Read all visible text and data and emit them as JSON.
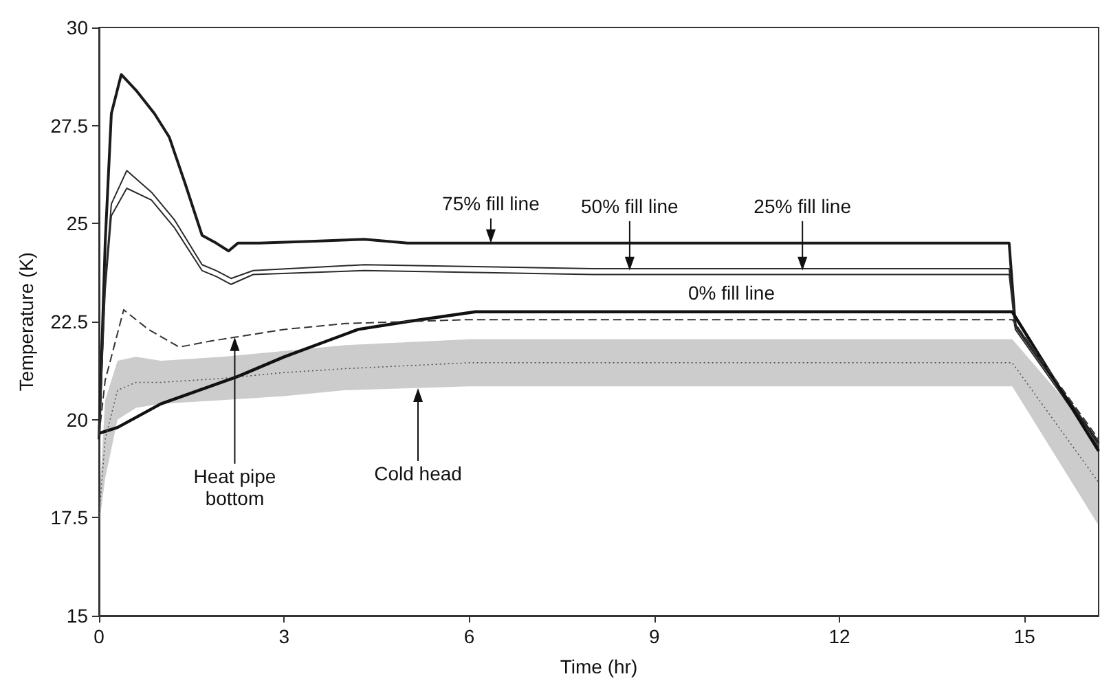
{
  "chart_data": {
    "type": "line",
    "xlabel": "Time (hr)",
    "ylabel": "Temperature (K)",
    "xlim": [
      0,
      16.2
    ],
    "xticks": [
      0,
      3,
      6,
      9,
      12,
      15
    ],
    "ylim": [
      15,
      30
    ],
    "yticks": [
      15,
      17.5,
      20,
      22.5,
      25,
      27.5,
      30
    ],
    "grid": false,
    "marker": "none",
    "series": [
      {
        "color": "#1a1a1a",
        "line_style": "solid",
        "x": [
          0,
          0.1,
          0.2,
          0.36,
          0.6,
          0.9,
          1.14,
          1.4,
          1.67,
          1.9,
          2.1,
          2.25,
          2.6,
          3.5,
          4.3,
          5,
          8,
          11,
          14.75,
          14.85,
          16.2
        ],
        "values": [
          19.5,
          24.5,
          27.8,
          28.8,
          28.4,
          27.8,
          27.2,
          26,
          24.7,
          24.5,
          24.3,
          24.5,
          24.5,
          24.55,
          24.6,
          24.5,
          24.5,
          24.5,
          24.5,
          22.4,
          19.4
        ]
      },
      {
        "color": "#2a2a2a",
        "line_style": "solid",
        "x": [
          0,
          0.1,
          0.2,
          0.45,
          0.85,
          1.22,
          1.67,
          1.9,
          2.14,
          2.5,
          4.3,
          8,
          14.75,
          14.85,
          16.2
        ],
        "values": [
          19.5,
          23.5,
          25.5,
          26.35,
          25.8,
          25.1,
          23.95,
          23.8,
          23.6,
          23.8,
          23.95,
          23.85,
          23.85,
          22.4,
          19.4
        ]
      },
      {
        "color": "#2a2a2a",
        "line_style": "solid",
        "x": [
          0,
          0.1,
          0.2,
          0.45,
          0.85,
          1.22,
          1.67,
          1.9,
          2.14,
          2.5,
          4.3,
          8,
          14.75,
          14.85,
          16.2
        ],
        "values": [
          19.5,
          23.3,
          25.2,
          25.9,
          25.6,
          24.9,
          23.8,
          23.65,
          23.45,
          23.7,
          23.8,
          23.7,
          23.7,
          22.3,
          19.3
        ]
      },
      {
        "color": "#111111",
        "line_style": "solid",
        "x": [
          0,
          0.3,
          1,
          2.25,
          3,
          4.2,
          5,
          6.1,
          10,
          14.8,
          16.2
        ],
        "values": [
          19.65,
          19.8,
          20.4,
          21.1,
          21.6,
          22.3,
          22.5,
          22.75,
          22.75,
          22.75,
          19.2
        ]
      },
      {
        "color": "#333333",
        "line_style": "dashed",
        "x": [
          0,
          0.1,
          0.4,
          0.8,
          1.3,
          1.8,
          2.2,
          3,
          4,
          6,
          10,
          14.8,
          16.2
        ],
        "values": [
          19.6,
          21,
          22.8,
          22.3,
          21.85,
          22,
          22.1,
          22.3,
          22.45,
          22.55,
          22.55,
          22.55,
          19.5
        ]
      },
      {
        "color": "#555555",
        "line_style": "dotted",
        "x": [
          0,
          0.1,
          0.3,
          0.6,
          1,
          2,
          3,
          4,
          6,
          10,
          14.8,
          16.2
        ],
        "values": [
          17.5,
          19.5,
          20.75,
          20.95,
          20.95,
          21.05,
          21.2,
          21.3,
          21.45,
          21.45,
          21.45,
          18.4
        ],
        "lower": [
          17.3,
          18.5,
          20,
          20.3,
          20.4,
          20.5,
          20.6,
          20.75,
          20.85,
          20.85,
          20.85,
          17.3
        ],
        "upper": [
          17.8,
          20.5,
          21.5,
          21.6,
          21.5,
          21.6,
          21.75,
          21.9,
          22.05,
          22.05,
          22.05,
          19.5
        ]
      }
    ],
    "annotations": [
      {
        "text": "75% fill line",
        "x": 6.35,
        "y": 24.5
      },
      {
        "text": "50% fill line",
        "x": 8.6,
        "y": 23.8
      },
      {
        "text": "25% fill line",
        "x": 11.4,
        "y": 23.8
      },
      {
        "text": "0% fill line",
        "x": 10.25,
        "y": 22.75
      },
      {
        "text": "Heat pipe\nbottom",
        "x": 2.2,
        "y": 22.1
      },
      {
        "text": "Cold head",
        "x": 5.17,
        "y": 20.8
      }
    ]
  }
}
